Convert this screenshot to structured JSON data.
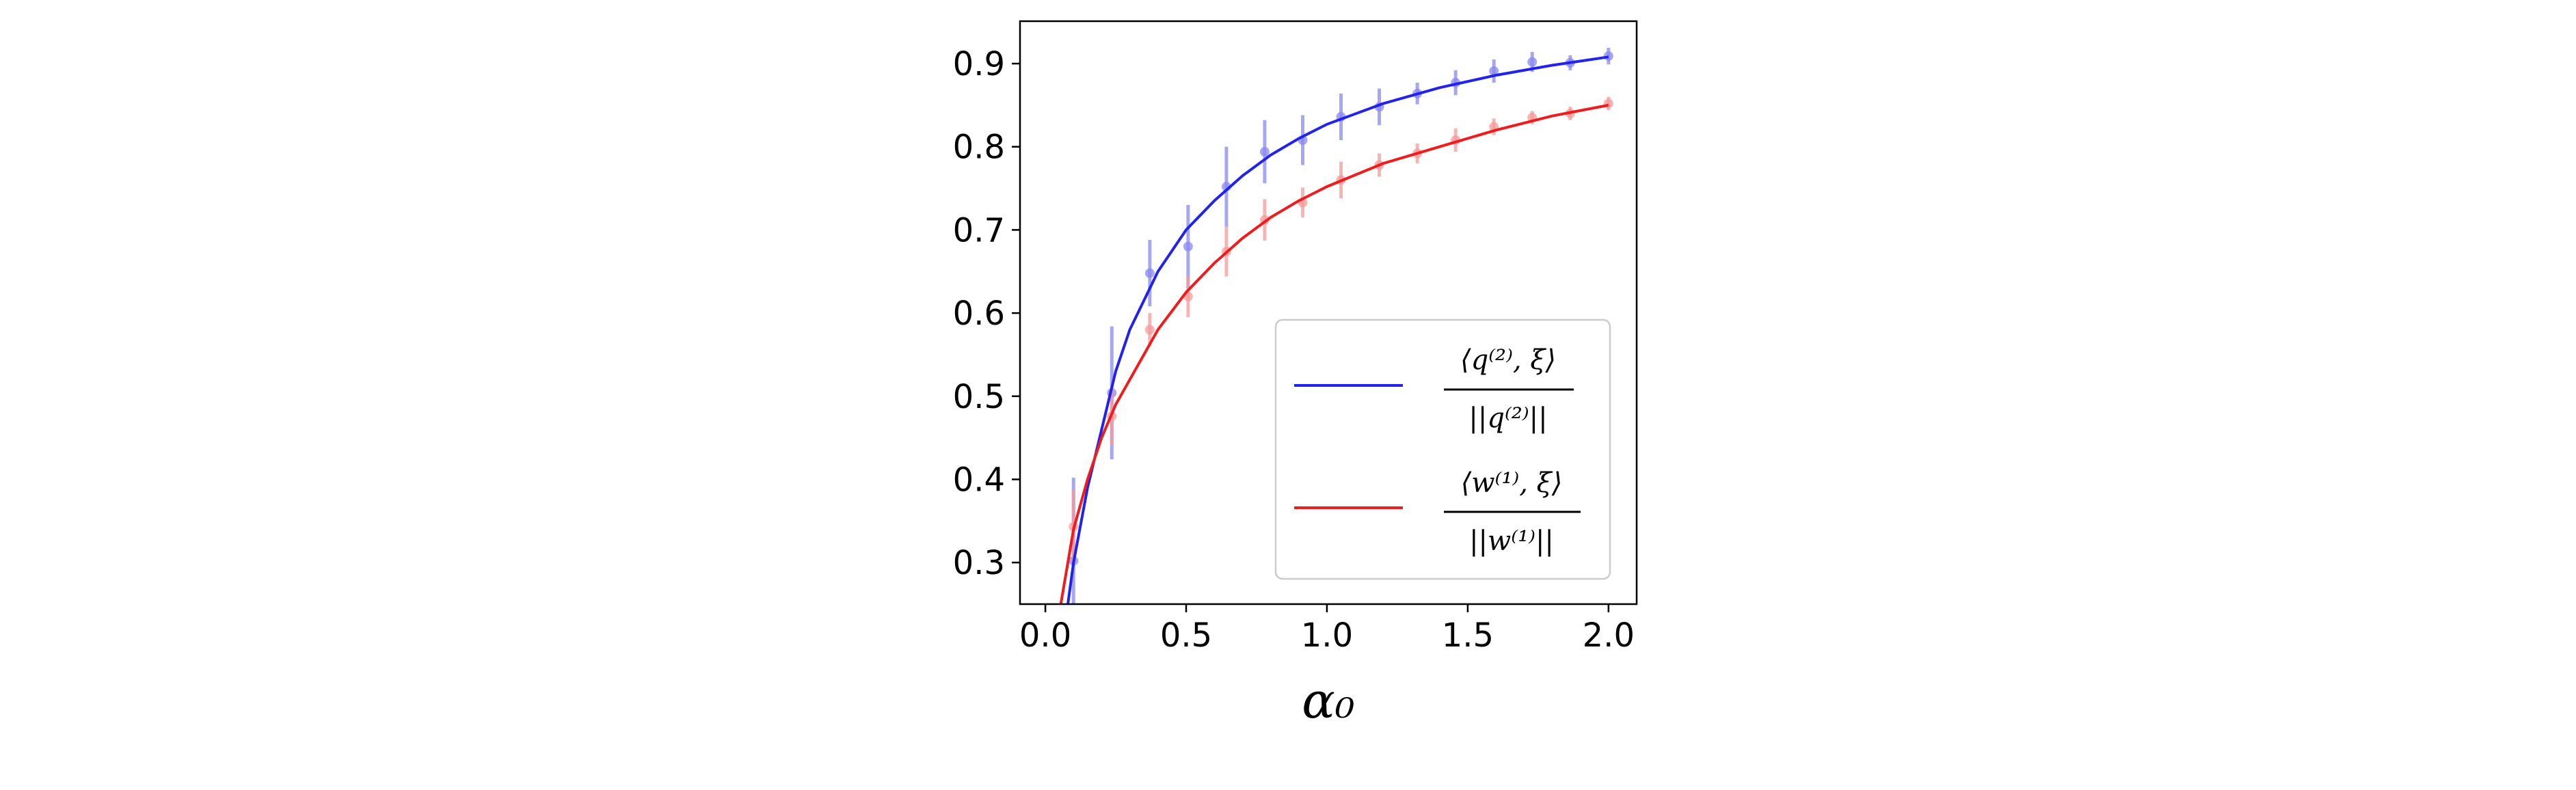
{
  "chart_data": {
    "type": "line",
    "title": "",
    "xlabel": "α₀",
    "ylabel": "",
    "xlim": [
      -0.09,
      2.1
    ],
    "ylim": [
      0.25,
      0.951
    ],
    "grid": false,
    "legend_placement": "lower-right",
    "xticks": [
      0.0,
      0.5,
      1.0,
      1.5,
      2.0
    ],
    "xtick_labels": [
      "0.0",
      "0.5",
      "1.0",
      "1.5",
      "2.0"
    ],
    "yticks": [
      0.3,
      0.4,
      0.5,
      0.6,
      0.7,
      0.8,
      0.9
    ],
    "ytick_labels": [
      "0.3",
      "0.4",
      "0.5",
      "0.6",
      "0.7",
      "0.8",
      "0.9"
    ],
    "series": [
      {
        "name": "q2",
        "legend_numerator": "⟨q⁽²⁾, ξ⟩",
        "legend_denominator": "||q⁽²⁾||",
        "color": "#2222ee",
        "marker_color": "#8888f0",
        "points_x": [
          0.1,
          0.236,
          0.371,
          0.507,
          0.643,
          0.779,
          0.914,
          1.05,
          1.186,
          1.321,
          1.457,
          1.593,
          1.729,
          1.864,
          2.0
        ],
        "points_y": [
          0.302,
          0.504,
          0.648,
          0.68,
          0.752,
          0.794,
          0.808,
          0.836,
          0.848,
          0.864,
          0.877,
          0.891,
          0.902,
          0.901,
          0.909
        ],
        "errors": [
          0.1,
          0.08,
          0.04,
          0.05,
          0.048,
          0.038,
          0.03,
          0.028,
          0.022,
          0.013,
          0.015,
          0.014,
          0.012,
          0.009,
          0.01
        ],
        "curve_x": [
          0.08,
          0.1,
          0.15,
          0.2,
          0.25,
          0.3,
          0.4,
          0.5,
          0.6,
          0.7,
          0.8,
          0.9,
          1.0,
          1.2,
          1.4,
          1.6,
          1.8,
          2.0
        ],
        "curve_y": [
          0.25,
          0.3,
          0.39,
          0.46,
          0.53,
          0.58,
          0.65,
          0.7,
          0.735,
          0.765,
          0.79,
          0.81,
          0.827,
          0.852,
          0.871,
          0.886,
          0.898,
          0.908
        ]
      },
      {
        "name": "w1",
        "legend_numerator": "⟨w⁽¹⁾, ξ⟩",
        "legend_denominator": "||w⁽¹⁾||",
        "color": "#ee1c1c",
        "marker_color": "#f59a9a",
        "points_x": [
          0.1,
          0.236,
          0.371,
          0.507,
          0.643,
          0.779,
          0.914,
          1.05,
          1.186,
          1.321,
          1.457,
          1.593,
          1.729,
          1.864,
          2.0
        ],
        "points_y": [
          0.343,
          0.476,
          0.58,
          0.62,
          0.674,
          0.712,
          0.733,
          0.76,
          0.778,
          0.792,
          0.808,
          0.824,
          0.835,
          0.84,
          0.852
        ],
        "errors": [
          0.045,
          0.035,
          0.02,
          0.025,
          0.03,
          0.025,
          0.018,
          0.022,
          0.014,
          0.012,
          0.014,
          0.01,
          0.008,
          0.008,
          0.008
        ],
        "curve_x": [
          0.055,
          0.1,
          0.15,
          0.2,
          0.25,
          0.3,
          0.4,
          0.5,
          0.6,
          0.7,
          0.8,
          0.9,
          1.0,
          1.2,
          1.4,
          1.6,
          1.8,
          2.0
        ],
        "curve_y": [
          0.25,
          0.34,
          0.4,
          0.45,
          0.49,
          0.52,
          0.58,
          0.625,
          0.66,
          0.69,
          0.715,
          0.735,
          0.752,
          0.78,
          0.8,
          0.82,
          0.837,
          0.85
        ]
      }
    ]
  }
}
